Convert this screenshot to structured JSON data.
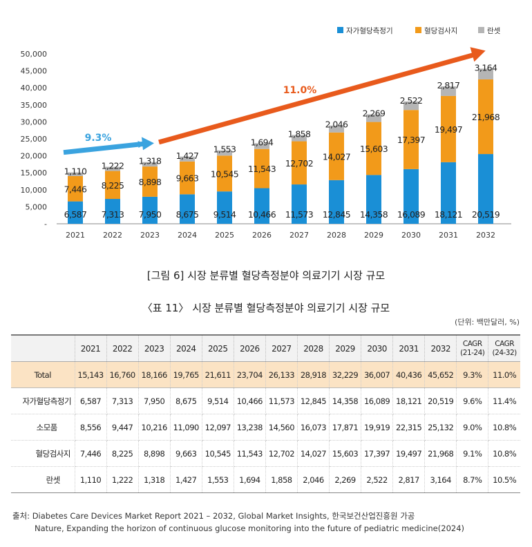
{
  "chart_data": {
    "type": "bar",
    "stacked": true,
    "categories": [
      "2021",
      "2022",
      "2023",
      "2024",
      "2025",
      "2026",
      "2027",
      "2028",
      "2029",
      "2030",
      "2031",
      "2032"
    ],
    "series": [
      {
        "name": "자가혈당측정기",
        "color": "#1a8fd6",
        "values": [
          6587,
          7313,
          7950,
          8675,
          9514,
          10466,
          11573,
          12845,
          14358,
          16089,
          18121,
          20519
        ],
        "labels": [
          "6,587",
          "7,313",
          "7,950",
          "8,675",
          "9,514",
          "10,466",
          "11,573",
          "12,845",
          "14,358",
          "16,089",
          "18,121",
          "20,519"
        ]
      },
      {
        "name": "혈당검사지",
        "color": "#f29a1a",
        "values": [
          7446,
          8225,
          8898,
          9663,
          10545,
          11543,
          12702,
          14027,
          15603,
          17397,
          19497,
          21968
        ],
        "labels": [
          "7,446",
          "8,225",
          "8,898",
          "9,663",
          "10,545",
          "11,543",
          "12,702",
          "14,027",
          "15,603",
          "17,397",
          "19,497",
          "21,968"
        ]
      },
      {
        "name": "란셋",
        "color": "#b5b5b5",
        "values": [
          1110,
          1222,
          1318,
          1427,
          1553,
          1694,
          1858,
          2046,
          2269,
          2522,
          2817,
          3164
        ],
        "labels": [
          "1,110",
          "1,222",
          "1,318",
          "1,427",
          "1,553",
          "1,694",
          "1,858",
          "2,046",
          "2,269",
          "2,522",
          "2,817",
          "3,164"
        ]
      }
    ],
    "ylim": [
      0,
      50000
    ],
    "yticks": [
      0,
      5000,
      10000,
      15000,
      20000,
      25000,
      30000,
      35000,
      40000,
      45000,
      50000
    ],
    "ytick_labels": [
      "-",
      "5,000",
      "10,000",
      "15,000",
      "20,000",
      "25,000",
      "30,000",
      "35,000",
      "40,000",
      "45,000",
      "50,000"
    ],
    "legend_position": "top-right",
    "grid": false,
    "annotations": [
      {
        "text": "9.3%",
        "color": "#3aa3df",
        "from_category": "2021",
        "to_category": "2023",
        "from_value": 21000,
        "to_value": 23500
      },
      {
        "text": "11.0%",
        "color": "#e85a1c",
        "from_category": "2023",
        "to_category": "2032",
        "from_value": 24000,
        "to_value": 50500
      }
    ]
  },
  "figure_caption": "[그림 6] 시장 분류별 혈당측정분야 의료기기 시장 규모",
  "table": {
    "caption": "〈표 11〉 시장 분류별 혈당측정분야 의료기기 시장 규모",
    "unit": "(단위: 백만달러, %)",
    "years": [
      "2021",
      "2022",
      "2023",
      "2024",
      "2025",
      "2026",
      "2027",
      "2028",
      "2029",
      "2030",
      "2031",
      "2032"
    ],
    "cagr_headers": [
      {
        "line1": "CAGR",
        "line2": "(21-24)"
      },
      {
        "line1": "CAGR",
        "line2": "(24-32)"
      }
    ],
    "rows": [
      {
        "label": "Total",
        "indent": 0,
        "values": [
          "15,143",
          "16,760",
          "18,166",
          "19,765",
          "21,611",
          "23,704",
          "26,133",
          "28,918",
          "32,229",
          "36,007",
          "40,436",
          "45,652",
          "9.3%",
          "11.0%"
        ]
      },
      {
        "label": "자가혈당측정기",
        "indent": 1,
        "values": [
          "6,587",
          "7,313",
          "7,950",
          "8,675",
          "9,514",
          "10,466",
          "11,573",
          "12,845",
          "14,358",
          "16,089",
          "18,121",
          "20,519",
          "9.6%",
          "11.4%"
        ]
      },
      {
        "label": "소모품",
        "indent": 1,
        "values": [
          "8,556",
          "9,447",
          "10,216",
          "11,090",
          "12,097",
          "13,238",
          "14,560",
          "16,073",
          "17,871",
          "19,919",
          "22,315",
          "25,132",
          "9.0%",
          "10.8%"
        ]
      },
      {
        "label": "혈당검사지",
        "indent": 2,
        "values": [
          "7,446",
          "8,225",
          "8,898",
          "9,663",
          "10,545",
          "11,543",
          "12,702",
          "14,027",
          "15,603",
          "17,397",
          "19,497",
          "21,968",
          "9.1%",
          "10.8%"
        ]
      },
      {
        "label": "란셋",
        "indent": 2,
        "values": [
          "1,110",
          "1,222",
          "1,318",
          "1,427",
          "1,553",
          "1,694",
          "1,858",
          "2,046",
          "2,269",
          "2,522",
          "2,817",
          "3,164",
          "8.7%",
          "10.5%"
        ]
      }
    ]
  },
  "source": {
    "line1": "출처: Diabetes Care Devices Market Report  2021 – 2032, Global Market Insights, 한국보건산업진흥원 가공",
    "line2": "Nature, Expanding the horizon of continuous glucose monitoring into the future of pediatric medicine(2024)"
  }
}
